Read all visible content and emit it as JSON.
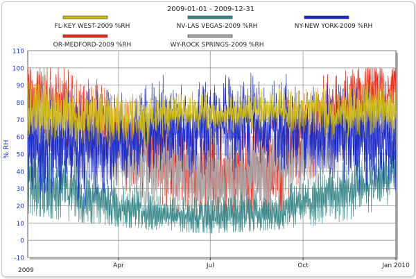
{
  "chart_data": {
    "type": "line",
    "title": "2009-01-01 - 2009-12-31",
    "ylabel": "% RH",
    "xlabel": "",
    "ylim": [
      -10,
      110
    ],
    "yticks": [
      -10,
      0,
      10,
      20,
      30,
      40,
      50,
      60,
      70,
      80,
      90,
      100,
      110
    ],
    "xlim": [
      "2009-01-01",
      "2010-01-01"
    ],
    "xticks": [
      {
        "label": "Apr",
        "date": "2009-04-01"
      },
      {
        "label": "Jul",
        "date": "2009-07-01"
      },
      {
        "label": "Oct",
        "date": "2009-10-01"
      },
      {
        "label": "Jan 2010",
        "date": "2010-01-01"
      }
    ],
    "x_start_label": "2009",
    "grid": true,
    "legend_placement": "top",
    "series": [
      {
        "name": "FL-KEY WEST-2009  %RH",
        "color": "#d4c010",
        "x": [
          "2009-01-01",
          "2009-02-01",
          "2009-03-01",
          "2009-04-01",
          "2009-05-01",
          "2009-06-01",
          "2009-07-01",
          "2009-08-01",
          "2009-09-01",
          "2009-10-01",
          "2009-11-01",
          "2009-12-01",
          "2009-12-31"
        ],
        "mean": [
          76,
          74,
          72,
          70,
          71,
          75,
          74,
          74,
          76,
          75,
          73,
          76,
          77
        ],
        "min": [
          55,
          50,
          50,
          48,
          55,
          62,
          63,
          62,
          63,
          60,
          55,
          55,
          57
        ],
        "max": [
          98,
          96,
          92,
          92,
          90,
          92,
          90,
          90,
          93,
          95,
          95,
          97,
          97
        ]
      },
      {
        "name": "NV-LAS VEGAS-2009  %RH",
        "color": "#3a8a8a",
        "x": [
          "2009-01-01",
          "2009-02-01",
          "2009-03-01",
          "2009-04-01",
          "2009-05-01",
          "2009-06-01",
          "2009-07-01",
          "2009-08-01",
          "2009-09-01",
          "2009-10-01",
          "2009-11-01",
          "2009-12-01",
          "2009-12-31"
        ],
        "mean": [
          35,
          30,
          24,
          20,
          17,
          15,
          13,
          14,
          15,
          20,
          28,
          32,
          40
        ],
        "min": [
          15,
          12,
          10,
          8,
          6,
          5,
          4,
          5,
          6,
          8,
          10,
          14,
          18
        ],
        "max": [
          80,
          70,
          55,
          50,
          40,
          35,
          35,
          45,
          40,
          48,
          55,
          60,
          65
        ]
      },
      {
        "name": "NY-NEW YORK-2009  %RH",
        "color": "#1a2acc",
        "x": [
          "2009-01-01",
          "2009-02-01",
          "2009-03-01",
          "2009-04-01",
          "2009-05-01",
          "2009-06-01",
          "2009-07-01",
          "2009-08-01",
          "2009-09-01",
          "2009-10-01",
          "2009-11-01",
          "2009-12-01",
          "2009-12-31"
        ],
        "mean": [
          55,
          55,
          55,
          58,
          62,
          66,
          66,
          68,
          66,
          64,
          62,
          60,
          58
        ],
        "min": [
          22,
          20,
          18,
          20,
          22,
          28,
          32,
          30,
          28,
          25,
          22,
          22,
          25
        ],
        "max": [
          100,
          100,
          100,
          100,
          100,
          100,
          100,
          100,
          100,
          100,
          100,
          100,
          100
        ]
      },
      {
        "name": "OR-MEDFORD-2009  %RH",
        "color": "#f02818",
        "x": [
          "2009-01-01",
          "2009-02-01",
          "2009-03-01",
          "2009-04-01",
          "2009-05-01",
          "2009-06-01",
          "2009-07-01",
          "2009-08-01",
          "2009-09-01",
          "2009-10-01",
          "2009-11-01",
          "2009-12-01",
          "2009-12-31"
        ],
        "mean": [
          85,
          78,
          70,
          62,
          52,
          45,
          38,
          38,
          40,
          58,
          75,
          85,
          88
        ],
        "min": [
          45,
          40,
          30,
          25,
          20,
          16,
          13,
          14,
          15,
          22,
          40,
          50,
          55
        ],
        "max": [
          100,
          100,
          100,
          98,
          98,
          97,
          96,
          95,
          96,
          98,
          100,
          100,
          100
        ]
      },
      {
        "name": "WY-ROCK SPRINGS-2009  %RH",
        "color": "#a8a8a8",
        "x": [
          "2009-01-01",
          "2009-02-01",
          "2009-03-01",
          "2009-04-01",
          "2009-05-01",
          "2009-06-01",
          "2009-07-01",
          "2009-08-01",
          "2009-09-01",
          "2009-10-01",
          "2009-11-01",
          "2009-12-01",
          "2009-12-31"
        ],
        "mean": [
          70,
          66,
          58,
          50,
          45,
          42,
          35,
          36,
          40,
          50,
          62,
          70,
          72
        ],
        "min": [
          35,
          30,
          25,
          20,
          15,
          12,
          10,
          10,
          12,
          18,
          28,
          35,
          40
        ],
        "max": [
          95,
          92,
          90,
          88,
          85,
          85,
          80,
          78,
          82,
          88,
          92,
          95,
          95
        ]
      }
    ]
  }
}
